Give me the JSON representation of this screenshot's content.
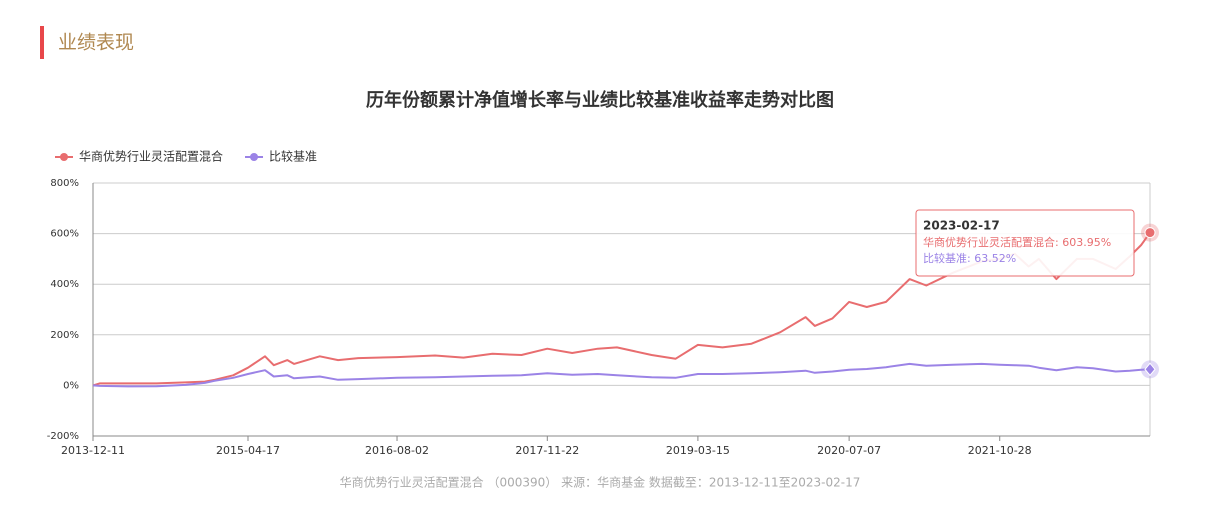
{
  "header": {
    "title": "业绩表现"
  },
  "chart_data": {
    "type": "line",
    "title": "历年份额累计净值增长率与业绩比较基准收益率走势对比图",
    "x": [
      "2013-12-11",
      "2014-01-01",
      "2014-04-01",
      "2014-07-01",
      "2014-10-01",
      "2014-12-01",
      "2015-01-01",
      "2015-03-01",
      "2015-04-17",
      "2015-06-10",
      "2015-07-08",
      "2015-08-20",
      "2015-09-10",
      "2015-12-01",
      "2016-01-28",
      "2016-04-01",
      "2016-08-02",
      "2016-12-01",
      "2017-03-01",
      "2017-06-01",
      "2017-09-01",
      "2017-11-22",
      "2018-02-09",
      "2018-05-01",
      "2018-07-01",
      "2018-10-19",
      "2019-01-03",
      "2019-03-15",
      "2019-06-01",
      "2019-09-01",
      "2019-12-01",
      "2020-02-20",
      "2020-03-20",
      "2020-05-15",
      "2020-07-07",
      "2020-09-01",
      "2020-11-01",
      "2021-01-15",
      "2021-03-09",
      "2021-06-01",
      "2021-09-01",
      "2021-10-28",
      "2021-12-15",
      "2022-01-28",
      "2022-03-01",
      "2022-04-26",
      "2022-06-30",
      "2022-08-20",
      "2022-10-31",
      "2022-12-15",
      "2023-01-20",
      "2023-02-17"
    ],
    "series": [
      {
        "name": "华商优势行业灵活配置混合",
        "color": "#e86d6f",
        "values": [
          0,
          8,
          8,
          8,
          12,
          15,
          22,
          40,
          70,
          115,
          80,
          100,
          85,
          115,
          100,
          108,
          112,
          118,
          110,
          125,
          120,
          145,
          128,
          145,
          150,
          120,
          105,
          160,
          150,
          165,
          210,
          270,
          235,
          265,
          330,
          310,
          330,
          420,
          395,
          445,
          490,
          500,
          520,
          470,
          500,
          420,
          500,
          500,
          460,
          510,
          555,
          603.95
        ]
      },
      {
        "name": "比较基准",
        "color": "#9b83e6",
        "values": [
          0,
          -2,
          -4,
          -3,
          2,
          10,
          18,
          30,
          45,
          60,
          35,
          40,
          28,
          35,
          22,
          25,
          30,
          32,
          35,
          38,
          40,
          48,
          42,
          45,
          40,
          32,
          30,
          45,
          45,
          48,
          52,
          58,
          50,
          55,
          62,
          65,
          72,
          85,
          78,
          82,
          85,
          82,
          80,
          78,
          70,
          60,
          72,
          68,
          55,
          58,
          62,
          63.52
        ]
      }
    ],
    "xlim": [
      "2013-12-11",
      "2023-02-17"
    ],
    "xticks": [
      "2013-12-11",
      "2015-04-17",
      "2016-08-02",
      "2017-11-22",
      "2019-03-15",
      "2020-07-07",
      "2021-10-28"
    ],
    "ylim": [
      -200,
      800
    ],
    "yticks": [
      {
        "value": -200,
        "label": "-200%"
      },
      {
        "value": 0,
        "label": "0%"
      },
      {
        "value": 200,
        "label": "200%"
      },
      {
        "value": 400,
        "label": "400%"
      },
      {
        "value": 600,
        "label": "600%"
      },
      {
        "value": 800,
        "label": "800%"
      }
    ],
    "grid": true,
    "legend": "top-left",
    "tooltip": {
      "date": "2023-02-17",
      "rows": [
        "华商优势行业灵活配置混合: 603.95%",
        "比较基准: 63.52%"
      ]
    }
  },
  "footer": {
    "text": "华商优势行业灵活配置混合 （000390） 来源：华商基金 数据截至：2013-12-11至2023-02-17"
  }
}
